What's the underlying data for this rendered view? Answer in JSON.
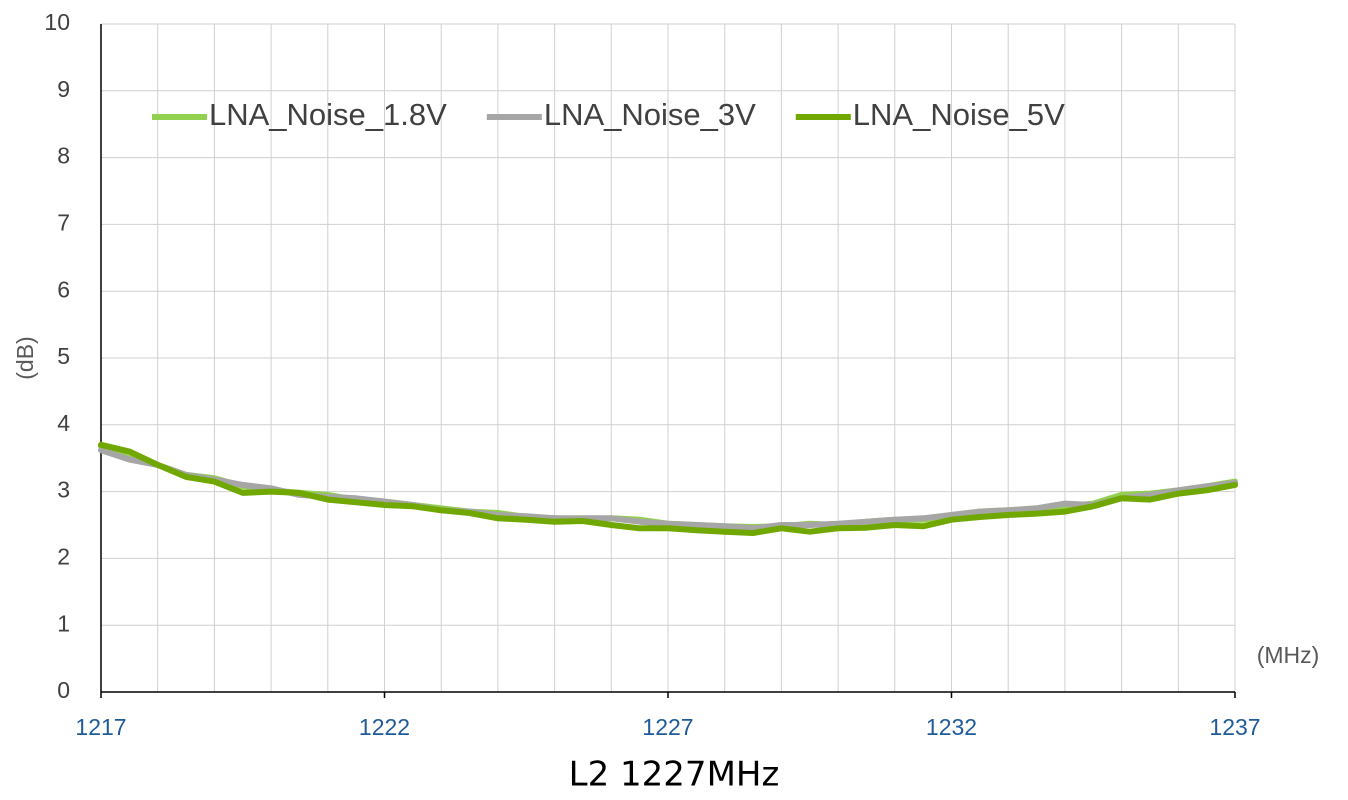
{
  "chart_data": {
    "type": "line",
    "title": "L2 1227MHz",
    "y_label": "(dB)",
    "x_label": "(MHz)",
    "x": [
      1217,
      1217.5,
      1218,
      1218.5,
      1219,
      1219.5,
      1220,
      1220.5,
      1221,
      1221.5,
      1222,
      1222.5,
      1223,
      1223.5,
      1224,
      1224.5,
      1225,
      1225.5,
      1226,
      1226.5,
      1227,
      1227.5,
      1228,
      1228.5,
      1229,
      1229.5,
      1230,
      1230.5,
      1231,
      1231.5,
      1232,
      1232.5,
      1233,
      1233.5,
      1234,
      1234.5,
      1235,
      1235.5,
      1236,
      1236.5,
      1237
    ],
    "series": [
      {
        "name": "LNA_Noise_1.8V",
        "color": "#92d050",
        "values": [
          3.68,
          3.5,
          3.4,
          3.25,
          3.2,
          3.08,
          3.02,
          2.98,
          2.95,
          2.88,
          2.85,
          2.8,
          2.75,
          2.7,
          2.68,
          2.62,
          2.6,
          2.58,
          2.6,
          2.58,
          2.52,
          2.5,
          2.48,
          2.47,
          2.48,
          2.52,
          2.5,
          2.55,
          2.58,
          2.58,
          2.65,
          2.7,
          2.72,
          2.73,
          2.78,
          2.82,
          2.95,
          2.97,
          3.02,
          3.08,
          3.15
        ]
      },
      {
        "name": "LNA_Noise_3V",
        "color": "#a6a6a6",
        "values": [
          3.62,
          3.48,
          3.4,
          3.25,
          3.18,
          3.1,
          3.05,
          2.95,
          2.92,
          2.9,
          2.85,
          2.8,
          2.72,
          2.7,
          2.65,
          2.63,
          2.6,
          2.6,
          2.6,
          2.55,
          2.52,
          2.5,
          2.48,
          2.45,
          2.5,
          2.5,
          2.52,
          2.55,
          2.58,
          2.6,
          2.65,
          2.7,
          2.72,
          2.75,
          2.82,
          2.8,
          2.9,
          2.95,
          3.02,
          3.08,
          3.13
        ]
      },
      {
        "name": "LNA_Noise_5V",
        "color": "#70a800",
        "values": [
          3.7,
          3.6,
          3.4,
          3.22,
          3.15,
          2.98,
          3.0,
          2.98,
          2.88,
          2.84,
          2.8,
          2.78,
          2.72,
          2.68,
          2.6,
          2.58,
          2.55,
          2.56,
          2.5,
          2.45,
          2.45,
          2.42,
          2.4,
          2.38,
          2.45,
          2.4,
          2.45,
          2.46,
          2.5,
          2.48,
          2.58,
          2.62,
          2.65,
          2.67,
          2.7,
          2.78,
          2.9,
          2.88,
          2.97,
          3.02,
          3.1
        ]
      }
    ],
    "xlim": [
      1217,
      1237
    ],
    "xticks": [
      1217,
      1222,
      1227,
      1232,
      1237
    ],
    "xgrid": [
      1217,
      1218,
      1219,
      1220,
      1221,
      1222,
      1223,
      1224,
      1225,
      1226,
      1227,
      1228,
      1229,
      1230,
      1231,
      1232,
      1233,
      1234,
      1235,
      1236,
      1237
    ],
    "ylim": [
      0,
      10
    ],
    "yticks": [
      0,
      1,
      2,
      3,
      4,
      5,
      6,
      7,
      8,
      9,
      10
    ],
    "grid": true,
    "legend": "top"
  }
}
